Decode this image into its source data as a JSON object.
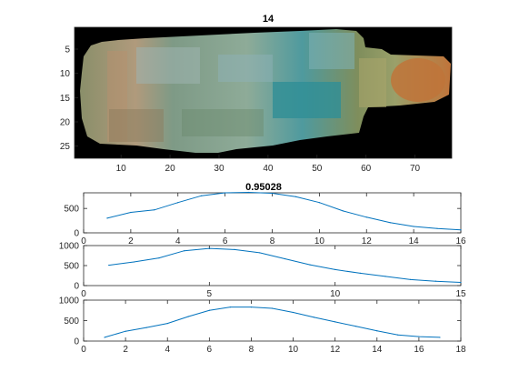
{
  "chart_data": [
    {
      "type": "image",
      "title": "14",
      "xlim": [
        0.5,
        77.5
      ],
      "ylim": [
        0.5,
        27.5
      ],
      "x_ticks": [
        10,
        20,
        30,
        40,
        50,
        60,
        70
      ],
      "y_ticks": [
        5,
        10,
        15,
        20,
        25
      ],
      "y_reversed": true,
      "description_colors": {
        "background": "#000000",
        "body": "#8a9a70",
        "teal_band": "#2f8f96",
        "orange_tip": "#c0743a"
      }
    },
    {
      "type": "line",
      "title": "0.95028",
      "x": [
        1,
        2,
        3,
        4,
        5,
        6,
        7,
        8,
        9,
        10,
        11,
        12,
        13,
        14,
        15,
        16
      ],
      "values": [
        300,
        420,
        470,
        620,
        760,
        820,
        830,
        810,
        740,
        620,
        450,
        320,
        210,
        130,
        90,
        60
      ],
      "xlim": [
        0,
        16
      ],
      "ylim": [
        0,
        820
      ],
      "x_ticks": [
        0,
        2,
        4,
        6,
        8,
        10,
        12,
        14,
        16
      ],
      "y_ticks": [
        0,
        500
      ]
    },
    {
      "type": "line",
      "title": "",
      "x": [
        1,
        2,
        3,
        4,
        5,
        6,
        7,
        8,
        9,
        10,
        11,
        12,
        13,
        14,
        15
      ],
      "values": [
        510,
        590,
        690,
        870,
        930,
        900,
        820,
        670,
        520,
        400,
        310,
        230,
        150,
        110,
        80
      ],
      "xlim": [
        0,
        15
      ],
      "ylim": [
        0,
        1000
      ],
      "x_ticks": [
        0,
        5,
        10,
        15
      ],
      "y_ticks": [
        0,
        500,
        1000
      ]
    },
    {
      "type": "line",
      "title": "",
      "x": [
        1,
        2,
        3,
        4,
        5,
        6,
        7,
        8,
        9,
        10,
        11,
        12,
        13,
        14,
        15,
        16,
        17
      ],
      "values": [
        90,
        240,
        330,
        430,
        600,
        750,
        830,
        830,
        800,
        700,
        580,
        470,
        360,
        250,
        150,
        110,
        90
      ],
      "xlim": [
        0,
        18
      ],
      "ylim": [
        0,
        1000
      ],
      "x_ticks": [
        0,
        2,
        4,
        6,
        8,
        10,
        12,
        14,
        16,
        18
      ],
      "y_ticks": [
        0,
        500,
        1000
      ]
    }
  ]
}
